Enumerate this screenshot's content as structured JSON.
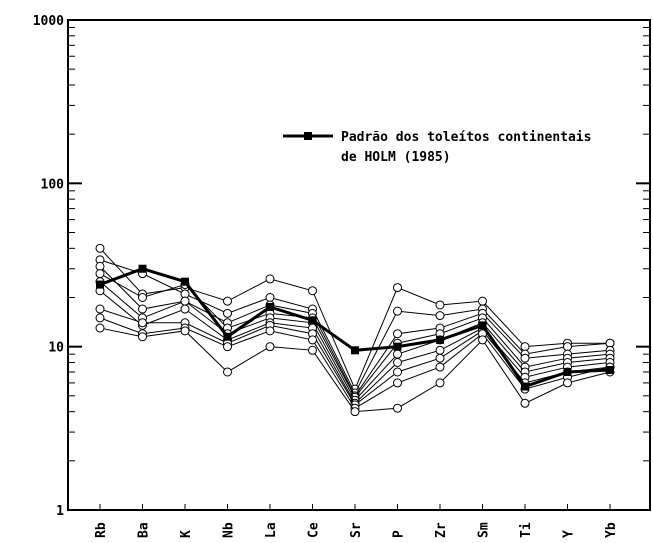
{
  "chart_data": {
    "type": "line",
    "title": "",
    "xlabel": "",
    "ylabel": "",
    "yscale": "log",
    "ylim": [
      1,
      1000
    ],
    "y_ticks": [
      "1",
      "10",
      "100",
      "1000"
    ],
    "categories": [
      "Rb",
      "Ba",
      "K",
      "Nb",
      "La",
      "Ce",
      "Sr",
      "P",
      "Zr",
      "Sm",
      "Ti",
      "Y",
      "Yb"
    ],
    "grid": false,
    "legend": {
      "position": "upper-right",
      "lines": [
        "Padrão dos toleítos continentais",
        "de HOLM (1985)"
      ]
    },
    "series": [
      {
        "name": "Padrão dos toleítos continentais de HOLM (1985)",
        "highlight": true,
        "values": [
          24,
          30,
          25,
          11.5,
          17.5,
          14.5,
          9.5,
          10,
          11,
          13.5,
          5.7,
          7,
          7.2
        ]
      },
      {
        "values": [
          40,
          21,
          23,
          19,
          26,
          22,
          5.5,
          23,
          18,
          19,
          10,
          10.5,
          10.5
        ]
      },
      {
        "values": [
          34,
          28,
          21,
          16,
          20,
          17,
          5.2,
          16.5,
          15.5,
          17,
          9,
          10,
          10.5
        ]
      },
      {
        "values": [
          31,
          17,
          19,
          14,
          18,
          16,
          5,
          12,
          13,
          16,
          8.5,
          9,
          9.5
        ]
      },
      {
        "values": [
          28,
          20,
          24,
          13,
          16,
          15,
          4.9,
          10.5,
          12,
          15,
          7.5,
          8.5,
          9
        ]
      },
      {
        "values": [
          25,
          15,
          19,
          12,
          15,
          14,
          4.7,
          9,
          11,
          14,
          7,
          8,
          8.5
        ]
      },
      {
        "values": [
          22,
          13.5,
          17,
          11,
          14,
          13,
          4.5,
          8,
          9.5,
          13,
          6.5,
          7.5,
          8
        ]
      },
      {
        "values": [
          17,
          14,
          14,
          10.5,
          13.5,
          12,
          4.4,
          7,
          8.5,
          12.5,
          6,
          7,
          7.5
        ]
      },
      {
        "values": [
          15,
          12,
          13,
          10,
          12.5,
          11,
          4.2,
          6,
          7.5,
          12,
          5.5,
          6.5,
          7.5
        ]
      },
      {
        "values": [
          13,
          11.5,
          12.5,
          7,
          10,
          9.5,
          4,
          4.2,
          6,
          11,
          4.5,
          6,
          7
        ]
      }
    ]
  }
}
